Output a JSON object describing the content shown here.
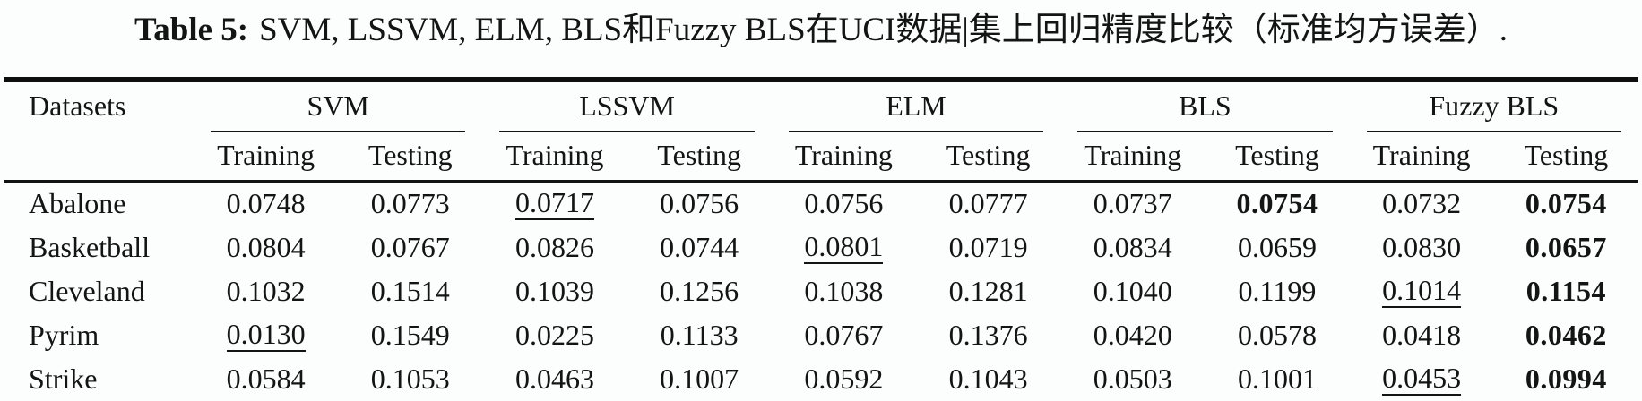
{
  "colors": {
    "background": "#fcfdfd",
    "text": "#141414",
    "rule": "#0e0e0e"
  },
  "caption": {
    "label": "Table 5:",
    "text": "SVM, LSSVM, ELM, BLS和Fuzzy BLS在UCI数据|集上回归精度比较（标准均方误差）."
  },
  "table": {
    "corner_header": "Datasets",
    "groups": [
      "SVM",
      "LSSVM",
      "ELM",
      "BLS",
      "Fuzzy BLS"
    ],
    "subheaders": [
      "Training",
      "Testing"
    ],
    "rows": [
      {
        "dataset": "Abalone",
        "values": [
          {
            "v": "0.0748"
          },
          {
            "v": "0.0773"
          },
          {
            "v": "0.0717",
            "underline": true
          },
          {
            "v": "0.0756"
          },
          {
            "v": "0.0756"
          },
          {
            "v": "0.0777"
          },
          {
            "v": "0.0737"
          },
          {
            "v": "0.0754",
            "bold": true
          },
          {
            "v": "0.0732"
          },
          {
            "v": "0.0754",
            "bold": true
          }
        ]
      },
      {
        "dataset": "Basketball",
        "values": [
          {
            "v": "0.0804"
          },
          {
            "v": "0.0767"
          },
          {
            "v": "0.0826"
          },
          {
            "v": "0.0744"
          },
          {
            "v": "0.0801",
            "underline": true
          },
          {
            "v": "0.0719"
          },
          {
            "v": "0.0834"
          },
          {
            "v": "0.0659"
          },
          {
            "v": "0.0830"
          },
          {
            "v": "0.0657",
            "bold": true
          }
        ]
      },
      {
        "dataset": "Cleveland",
        "values": [
          {
            "v": "0.1032"
          },
          {
            "v": "0.1514"
          },
          {
            "v": "0.1039"
          },
          {
            "v": "0.1256"
          },
          {
            "v": "0.1038"
          },
          {
            "v": "0.1281"
          },
          {
            "v": "0.1040"
          },
          {
            "v": "0.1199"
          },
          {
            "v": "0.1014",
            "underline": true
          },
          {
            "v": "0.1154",
            "bold": true
          }
        ]
      },
      {
        "dataset": "Pyrim",
        "values": [
          {
            "v": "0.0130",
            "underline": true
          },
          {
            "v": "0.1549"
          },
          {
            "v": "0.0225"
          },
          {
            "v": "0.1133"
          },
          {
            "v": "0.0767"
          },
          {
            "v": "0.1376"
          },
          {
            "v": "0.0420"
          },
          {
            "v": "0.0578"
          },
          {
            "v": "0.0418"
          },
          {
            "v": "0.0462",
            "bold": true
          }
        ]
      },
      {
        "dataset": "Strike",
        "values": [
          {
            "v": "0.0584"
          },
          {
            "v": "0.1053"
          },
          {
            "v": "0.0463"
          },
          {
            "v": "0.1007"
          },
          {
            "v": "0.0592"
          },
          {
            "v": "0.1043"
          },
          {
            "v": "0.0503"
          },
          {
            "v": "0.1001"
          },
          {
            "v": "0.0453",
            "underline": true
          },
          {
            "v": "0.0994",
            "bold": true
          }
        ]
      }
    ]
  }
}
